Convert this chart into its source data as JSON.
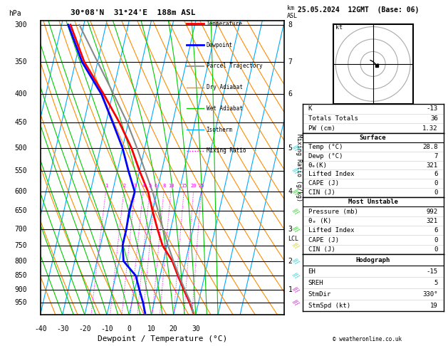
{
  "title_left": "30°08'N  31°24'E  188m ASL",
  "title_right": "25.05.2024  12GMT  (Base: 06)",
  "xlabel": "Dewpoint / Temperature (°C)",
  "pressure_levels": [
    300,
    350,
    400,
    450,
    500,
    550,
    600,
    650,
    700,
    750,
    800,
    850,
    900,
    950
  ],
  "temp_ticks": [
    -40,
    -30,
    -20,
    -10,
    0,
    10,
    20,
    30
  ],
  "isotherm_color": "#00AAFF",
  "dry_adiabat_color": "#FF8C00",
  "wet_adiabat_color": "#00CC00",
  "mixing_ratio_color": "#FF00FF",
  "temperature_data": {
    "pressure": [
      992,
      950,
      900,
      850,
      800,
      750,
      700,
      650,
      600,
      550,
      500,
      450,
      400,
      350,
      300
    ],
    "temp": [
      28.8,
      26.0,
      22.0,
      18.0,
      14.0,
      8.0,
      4.0,
      0.0,
      -4.0,
      -10.0,
      -16.0,
      -24.0,
      -34.0,
      -46.0,
      -56.0
    ],
    "color": "#FF0000",
    "linewidth": 2.0
  },
  "dewpoint_data": {
    "pressure": [
      992,
      950,
      900,
      850,
      800,
      750,
      700,
      650,
      600,
      550,
      500,
      450,
      400,
      350,
      300
    ],
    "temp": [
      7.0,
      5.0,
      2.0,
      -1.0,
      -8.0,
      -10.0,
      -10.0,
      -10.5,
      -10.0,
      -15.0,
      -20.0,
      -27.0,
      -35.0,
      -47.0,
      -57.0
    ],
    "color": "#0000FF",
    "linewidth": 2.0
  },
  "parcel_data": {
    "pressure": [
      992,
      950,
      900,
      850,
      800,
      750,
      700,
      650,
      600,
      550,
      500,
      450,
      400,
      350,
      300
    ],
    "temp": [
      28.8,
      26.5,
      22.5,
      18.5,
      14.5,
      10.5,
      6.5,
      2.5,
      -2.0,
      -7.5,
      -13.5,
      -20.5,
      -29.5,
      -40.0,
      -52.0
    ],
    "color": "#888888",
    "linewidth": 1.5
  },
  "mixing_ratios": [
    1,
    2,
    3,
    4,
    5,
    6,
    8,
    10,
    15,
    20,
    25
  ],
  "km_ticks": [
    1,
    2,
    3,
    4,
    5,
    6,
    7,
    8
  ],
  "km_pressures": [
    900,
    800,
    700,
    600,
    500,
    400,
    350,
    300
  ],
  "lcl_pressure": 730,
  "legend_entries": [
    {
      "label": "Temperature",
      "color": "#FF0000",
      "lw": 2,
      "ls": "-"
    },
    {
      "label": "Dewpoint",
      "color": "#0000FF",
      "lw": 2,
      "ls": "-"
    },
    {
      "label": "Parcel Trajectory",
      "color": "#999999",
      "lw": 1.5,
      "ls": "-"
    },
    {
      "label": "Dry Adiabat",
      "color": "#FF8C00",
      "lw": 1,
      "ls": "-"
    },
    {
      "label": "Wet Adiabat",
      "color": "#00CC00",
      "lw": 1,
      "ls": "-"
    },
    {
      "label": "Isotherm",
      "color": "#00AAFF",
      "lw": 1,
      "ls": "-"
    },
    {
      "label": "Mixing Ratio",
      "color": "#FF00FF",
      "lw": 1,
      "ls": ":"
    }
  ],
  "wind_barb_pressures": [
    950,
    900,
    850,
    800,
    750,
    700,
    650,
    600,
    550,
    500
  ],
  "wind_barb_colors": [
    "#CC00CC",
    "#CC00CC",
    "#00CCCC",
    "#00CCCC",
    "#CCCC00",
    "#00CC00",
    "#00CC00",
    "#00CC00",
    "#00CCCC",
    "#00CCCC"
  ],
  "background_color": "#FFFFFF"
}
